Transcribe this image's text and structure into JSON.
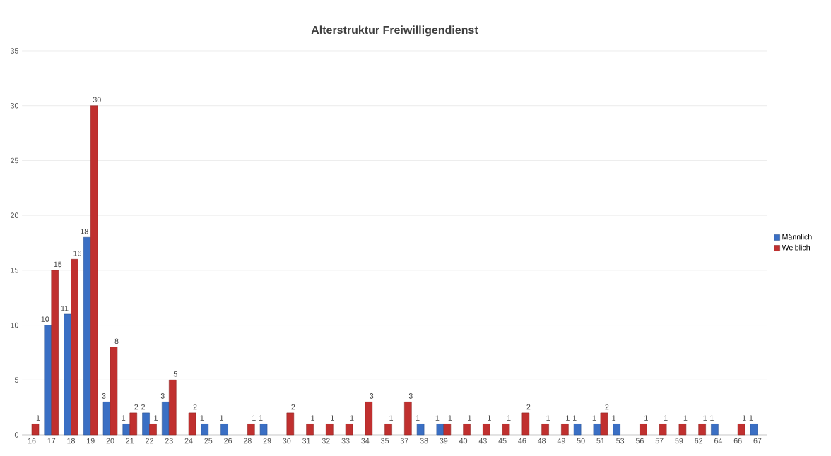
{
  "chart_data": {
    "type": "bar",
    "title": "Alterstruktur Freiwilligendienst",
    "categories": [
      "16",
      "17",
      "18",
      "19",
      "20",
      "21",
      "22",
      "23",
      "24",
      "25",
      "26",
      "28",
      "29",
      "30",
      "31",
      "32",
      "33",
      "34",
      "35",
      "37",
      "38",
      "39",
      "40",
      "43",
      "45",
      "46",
      "48",
      "49",
      "50",
      "51",
      "53",
      "56",
      "57",
      "59",
      "62",
      "64",
      "66",
      "67"
    ],
    "series": [
      {
        "name": "Männlich",
        "color": "#3a6fc4",
        "values": [
          null,
          10,
          11,
          18,
          3,
          1,
          2,
          3,
          null,
          1,
          1,
          null,
          1,
          null,
          null,
          null,
          null,
          null,
          null,
          null,
          1,
          1,
          null,
          null,
          null,
          null,
          null,
          null,
          1,
          1,
          1,
          null,
          null,
          null,
          null,
          1,
          null,
          1
        ]
      },
      {
        "name": "Weiblich",
        "color": "#c0302f",
        "values": [
          1,
          15,
          16,
          30,
          8,
          2,
          1,
          5,
          2,
          null,
          null,
          1,
          null,
          2,
          1,
          1,
          1,
          3,
          1,
          3,
          null,
          1,
          1,
          1,
          1,
          2,
          1,
          1,
          null,
          2,
          null,
          1,
          1,
          1,
          1,
          null,
          1,
          null
        ]
      }
    ],
    "ylim": [
      0,
      35
    ],
    "yticks": [
      0,
      5,
      10,
      15,
      20,
      25,
      30,
      35
    ],
    "grid": "y",
    "legend": "right",
    "data_labels": true
  }
}
